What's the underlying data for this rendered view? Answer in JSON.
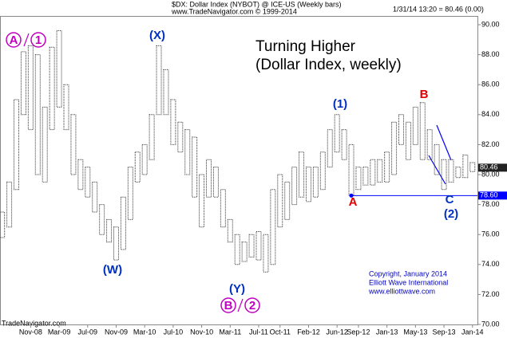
{
  "chart_data": {
    "type": "hilo",
    "title": "$DX: Dollar Index (NYBOT) @ ICE-US  (Weekly bars)",
    "subtitle": "www.TradeNavigator.com © 1999-2014",
    "quote": "1/31/14 13:20 = 80.46 (0.00)",
    "headline": [
      "Turning Higher",
      "(Dollar Index, weekly)"
    ],
    "footer": [
      "Copyright, January 2014",
      "Elliott Wave International",
      "www.elliottwave.com"
    ],
    "source": "TradeNavigator.com",
    "color": "#333333",
    "x": [
      6,
      7,
      8,
      9,
      10,
      11,
      12,
      13,
      14,
      15,
      16,
      17,
      18,
      19,
      20,
      21,
      22,
      23,
      24,
      25,
      26,
      27,
      28,
      29,
      30,
      31,
      32,
      33,
      34,
      35,
      36,
      37,
      38,
      39,
      40,
      41,
      42,
      43,
      44,
      45,
      46,
      47,
      48,
      49,
      50,
      51,
      52,
      53,
      54,
      55,
      56,
      57,
      58,
      59,
      60,
      61,
      62,
      63,
      64,
      65,
      66,
      67,
      68,
      69,
      70,
      71,
      72
    ],
    "high": [
      77.5,
      79.5,
      85,
      88.2,
      88.6,
      88,
      84.5,
      88.5,
      89.6,
      86,
      84,
      81,
      80.5,
      79.5,
      78,
      77,
      76.5,
      78.5,
      80.5,
      81.5,
      82,
      84,
      88.6,
      87,
      85,
      83.5,
      83,
      82.5,
      80,
      81,
      80.5,
      79,
      77,
      76,
      75.5,
      76,
      76.2,
      76,
      79,
      80,
      79.5,
      80.5,
      81.5,
      80.5,
      80.5,
      81.5,
      83,
      84,
      83,
      82,
      80.5,
      80.5,
      81,
      81,
      81.5,
      83.5,
      84,
      83.5,
      84.5,
      84.8,
      83,
      82,
      81,
      81,
      80.5,
      81.3,
      80.8
    ],
    "low": [
      75.8,
      76.5,
      79,
      84,
      83,
      80,
      79.5,
      83,
      84.5,
      83,
      80,
      79,
      78.5,
      77.5,
      76,
      75.5,
      74.3,
      75,
      77,
      79.5,
      80,
      81,
      84,
      84,
      82,
      81.5,
      80,
      78.5,
      76.5,
      78.5,
      78.5,
      76.5,
      75.5,
      74,
      74.2,
      74.5,
      74.3,
      73.5,
      74,
      76.5,
      77,
      78,
      78.5,
      78.2,
      78.5,
      79,
      80.5,
      81.5,
      81,
      78.6,
      79,
      79.3,
      79.3,
      79.5,
      79.5,
      80,
      82,
      81,
      82,
      81,
      81,
      80,
      79,
      79.5,
      79.8,
      79.8,
      80.2
    ],
    "xlim": [
      5.7,
      72.7
    ],
    "xticks": [
      {
        "value": 10,
        "label": "Nov-08"
      },
      {
        "value": 14,
        "label": "Mar-09"
      },
      {
        "value": 18,
        "label": "Jul-09"
      },
      {
        "value": 22,
        "label": "Nov-09"
      },
      {
        "value": 26,
        "label": "Mar-10"
      },
      {
        "value": 30,
        "label": "Jul-10"
      },
      {
        "value": 34,
        "label": "Nov-10"
      },
      {
        "value": 38,
        "label": "Mar-11"
      },
      {
        "value": 42,
        "label": "Jul-11"
      },
      {
        "value": 45,
        "label": "Oct-11"
      },
      {
        "value": 49,
        "label": "Feb-12"
      },
      {
        "value": 53,
        "label": "Jun-12"
      },
      {
        "value": 56,
        "label": "Sep-12"
      },
      {
        "value": 60,
        "label": "Jan-13"
      },
      {
        "value": 64,
        "label": "May-13"
      },
      {
        "value": 68,
        "label": "Sep-13"
      },
      {
        "value": 72,
        "label": "Jan-14"
      }
    ],
    "ylim": [
      70,
      90
    ],
    "yticks": [
      {
        "value": 70,
        "label": "70.00"
      },
      {
        "value": 72,
        "label": "72.00"
      },
      {
        "value": 74,
        "label": "74.00"
      },
      {
        "value": 76,
        "label": "76.00"
      },
      {
        "value": 78,
        "label": "78.00"
      },
      {
        "value": 80,
        "label": "80.00"
      },
      {
        "value": 82,
        "label": "82.00"
      },
      {
        "value": 84,
        "label": "84.00"
      },
      {
        "value": 86,
        "label": "86.00"
      },
      {
        "value": 88,
        "label": "88.00"
      },
      {
        "value": 90,
        "label": "90.00"
      }
    ],
    "level": {
      "value": 78.6,
      "label": "78.60",
      "color": "#0000ff"
    },
    "last": {
      "value": 80.46,
      "label": "80.46"
    },
    "waves": [
      {
        "text": "A",
        "color": "#c000c0",
        "circled": true
      },
      {
        "text": "1",
        "color": "#c000c0",
        "circled": true
      },
      {
        "text": "(W)",
        "color": "#0030c0",
        "circled": false
      },
      {
        "text": "(X)",
        "color": "#0030c0",
        "circled": false
      },
      {
        "text": "(Y)",
        "color": "#0030c0",
        "circled": false
      },
      {
        "text": "B",
        "color": "#c000c0",
        "circled": true
      },
      {
        "text": "2",
        "color": "#c000c0",
        "circled": true
      },
      {
        "text": "(1)",
        "color": "#0030c0",
        "circled": false
      },
      {
        "text": "A",
        "color": "#e00000",
        "circled": false
      },
      {
        "text": "B",
        "color": "#e00000",
        "circled": false
      },
      {
        "text": "C",
        "color": "#0030c0",
        "circled": false
      },
      {
        "text": "(2)",
        "color": "#0030c0",
        "circled": false
      }
    ]
  }
}
